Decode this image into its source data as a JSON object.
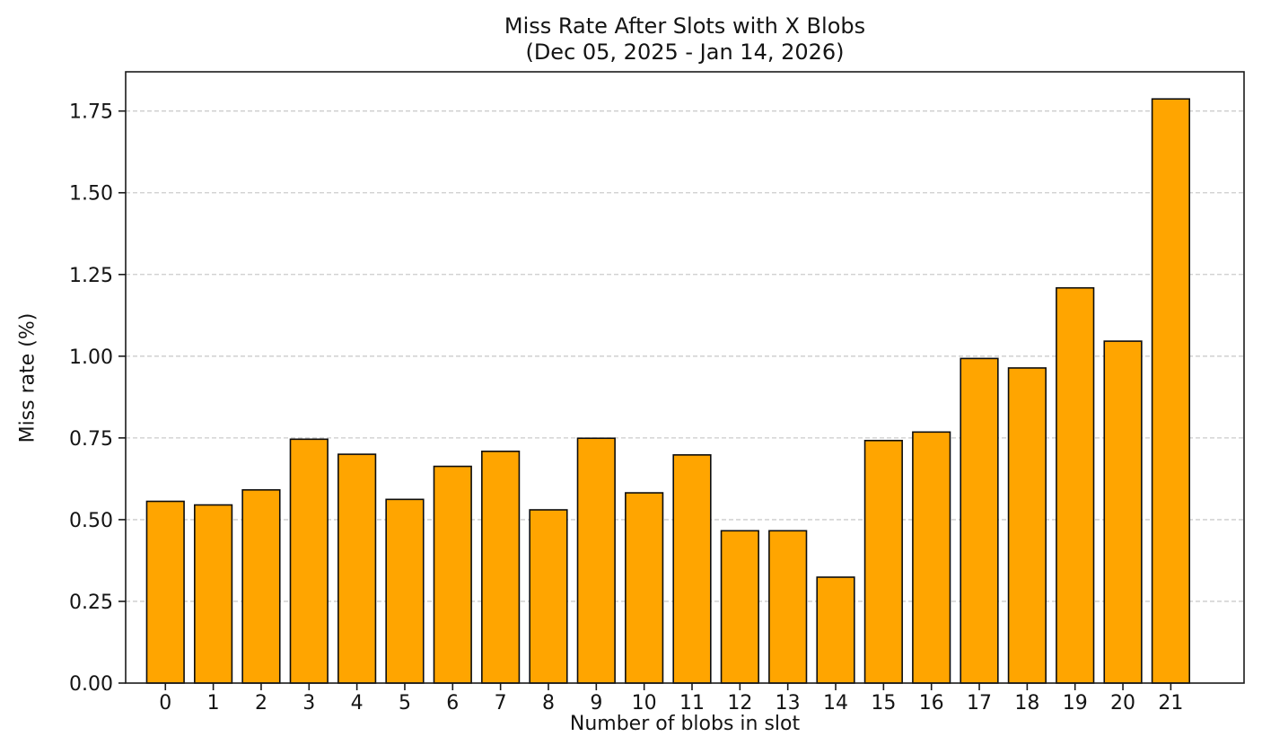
{
  "title": {
    "line1": "Miss Rate After Slots with X Blobs",
    "line2": "(Dec 05, 2025 - Jan 14, 2026)"
  },
  "chart_data": {
    "type": "bar",
    "title": "Miss Rate After Slots with X Blobs (Dec 05, 2025 - Jan 14, 2026)",
    "xlabel": "Number of blobs in slot",
    "ylabel": "Miss rate (%)",
    "categories": [
      "0",
      "1",
      "2",
      "3",
      "4",
      "5",
      "6",
      "7",
      "8",
      "9",
      "10",
      "11",
      "12",
      "13",
      "14",
      "15",
      "16",
      "17",
      "18",
      "19",
      "20",
      "21"
    ],
    "values": [
      0.556,
      0.545,
      0.591,
      0.746,
      0.7,
      0.562,
      0.663,
      0.709,
      0.53,
      0.749,
      0.582,
      0.698,
      0.466,
      0.466,
      0.324,
      0.742,
      0.768,
      0.993,
      0.964,
      1.209,
      1.046,
      1.787
    ],
    "y_ticks": [
      0.0,
      0.25,
      0.5,
      0.75,
      1.0,
      1.25,
      1.5,
      1.75
    ],
    "y_tick_labels": [
      "0.00",
      "0.25",
      "0.50",
      "0.75",
      "1.00",
      "1.25",
      "1.50",
      "1.75"
    ],
    "ylim": [
      0,
      1.87
    ],
    "xlim": [
      -0.83,
      22.53
    ],
    "bar_width_fraction": 0.78,
    "grid": "horizontal-dashed",
    "legend": "none",
    "colors": {
      "bar_fill": "#FFA500",
      "bar_edge": "#0d0d0d",
      "grid": "#cccccc",
      "spine": "#1a1a1a",
      "tick": "#1a1a1a",
      "text": "#141414",
      "background": "#ffffff"
    }
  }
}
